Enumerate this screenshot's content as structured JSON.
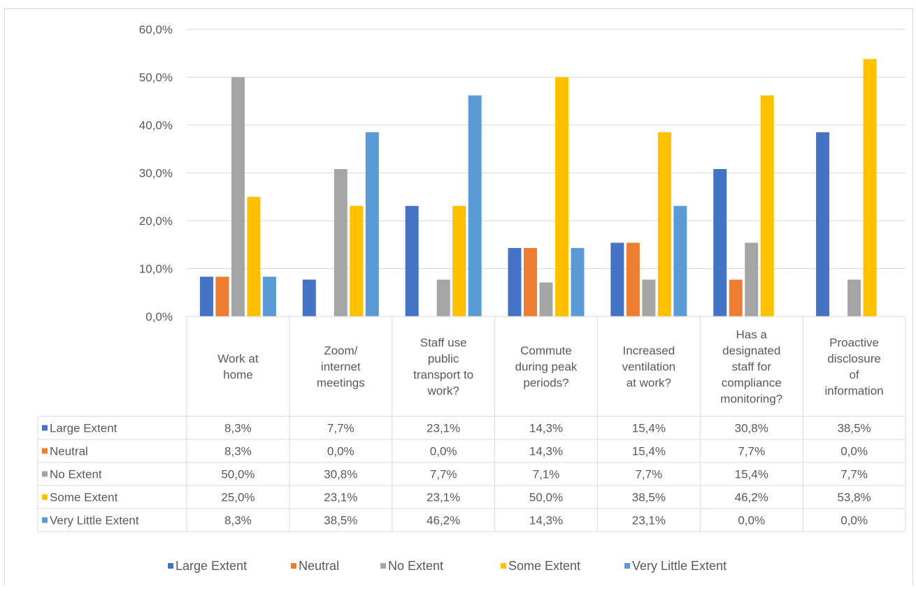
{
  "chart_data": {
    "type": "bar",
    "title": "",
    "xlabel": "",
    "ylabel": "",
    "ylim": [
      0,
      60
    ],
    "y_ticks": [
      "0,0%",
      "10,0%",
      "20,0%",
      "30,0%",
      "40,0%",
      "50,0%",
      "60,0%"
    ],
    "grid": true,
    "legend_position": "bottom",
    "categories": [
      [
        "Work at",
        "home"
      ],
      [
        "Zoom/",
        "internet",
        "meetings"
      ],
      [
        "Staff use",
        "public",
        "transport to",
        "work?"
      ],
      [
        "Commute",
        "during peak",
        "periods?"
      ],
      [
        "Increased",
        "ventilation",
        "at work?"
      ],
      [
        "Has a",
        "designated",
        "staff for",
        "compliance",
        "monitoring?"
      ],
      [
        "Proactive",
        "disclosure",
        "of",
        "information"
      ]
    ],
    "series": [
      {
        "name": "Large Extent",
        "color": "#4472c4",
        "values": [
          8.3,
          7.7,
          23.1,
          14.3,
          15.4,
          30.8,
          38.5
        ],
        "labels": [
          "8,3%",
          "7,7%",
          "23,1%",
          "14,3%",
          "15,4%",
          "30,8%",
          "38,5%"
        ]
      },
      {
        "name": "Neutral",
        "color": "#ed7d31",
        "values": [
          8.3,
          0.0,
          0.0,
          14.3,
          15.4,
          7.7,
          0.0
        ],
        "labels": [
          "8,3%",
          "0,0%",
          "0,0%",
          "14,3%",
          "15,4%",
          "7,7%",
          "0,0%"
        ]
      },
      {
        "name": "No Extent",
        "color": "#a5a5a5",
        "values": [
          50.0,
          30.8,
          7.7,
          7.1,
          7.7,
          15.4,
          7.7
        ],
        "labels": [
          "50,0%",
          "30,8%",
          "7,7%",
          "7,1%",
          "7,7%",
          "15,4%",
          "7,7%"
        ]
      },
      {
        "name": "Some Extent",
        "color": "#ffc000",
        "values": [
          25.0,
          23.1,
          23.1,
          50.0,
          38.5,
          46.2,
          53.8
        ],
        "labels": [
          "25,0%",
          "23,1%",
          "23,1%",
          "50,0%",
          "38,5%",
          "46,2%",
          "53,8%"
        ]
      },
      {
        "name": "Very Little Extent",
        "color": "#5b9bd5",
        "values": [
          8.3,
          38.5,
          46.2,
          14.3,
          23.1,
          0.0,
          0.0
        ],
        "labels": [
          "8,3%",
          "38,5%",
          "46,2%",
          "14,3%",
          "23,1%",
          "0,0%",
          "0,0%"
        ]
      }
    ]
  },
  "colors": {
    "gridline": "#d9d9d9",
    "text": "#595959"
  }
}
